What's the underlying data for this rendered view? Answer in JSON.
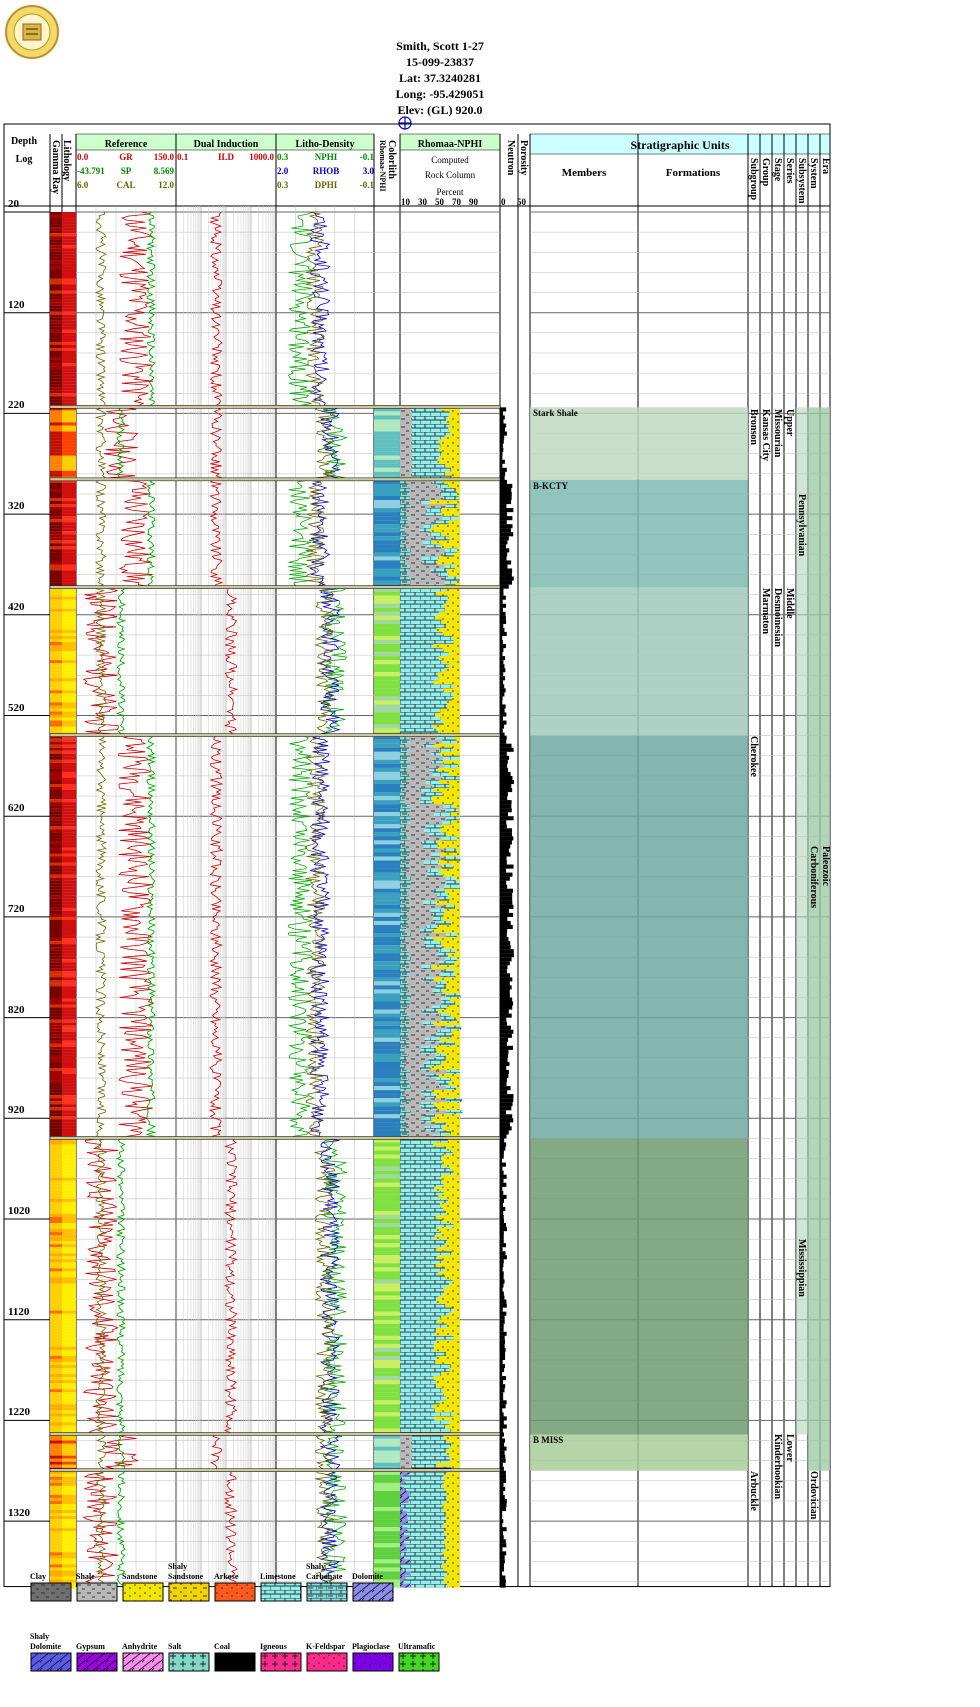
{
  "well": {
    "name": "Smith, Scott 1-27",
    "api": "15-099-23837",
    "lat": "Lat: 37.3240281",
    "long": "Long: -95.429051",
    "elev": "Elev: (GL) 920.0"
  },
  "tracks": {
    "depth_title": "Depth",
    "depth_sub": "Log",
    "lithology": "Lithology",
    "gamma": "Gamma Ray",
    "reference": {
      "title": "Reference",
      "rows": [
        {
          "min": "0.0",
          "name": "GR",
          "max": "150.0",
          "color": "#cc0000"
        },
        {
          "min": "-43.791",
          "name": "SP",
          "max": "8.569",
          "color": "#008800"
        },
        {
          "min": "6.0",
          "name": "CAL",
          "max": "12.0",
          "color": "#666600"
        }
      ]
    },
    "induction": {
      "title": "Dual Induction",
      "rows": [
        {
          "min": "0.1",
          "name": "ILD",
          "max": "1000.0",
          "color": "#cc0000"
        }
      ]
    },
    "density": {
      "title": "Litho-Density",
      "rows": [
        {
          "min": "0.3",
          "name": "NPHI",
          "max": "-0.1",
          "color": "#008800"
        },
        {
          "min": "2.0",
          "name": "RHOB",
          "max": "3.0",
          "color": "#0000cc"
        },
        {
          "min": "0.3",
          "name": "DPHI",
          "max": "-0.1",
          "color": "#666600"
        }
      ]
    },
    "colorlith": "Colorlith",
    "colorlith_sub": "Rhomaa-NPHI",
    "rhomaa": {
      "title": "Rhomaa-NPHI",
      "l1": "Computed",
      "l2": "Rock Column",
      "l3": "Percent",
      "scale": [
        "10",
        "30",
        "50",
        "70",
        "90"
      ]
    },
    "porosity": "Porosity",
    "neutron": "Neutron",
    "neutron_scale": [
      "0",
      "50"
    ],
    "strat_title": "Stratigraphic Units",
    "members": "Members",
    "formations": "Formations",
    "strat_cols": [
      "Subgroup",
      "Group",
      "Stage",
      "Series",
      "Subsystem",
      "System",
      "Era"
    ]
  },
  "depths": [
    "20",
    "120",
    "220",
    "320",
    "420",
    "520",
    "620",
    "720",
    "820",
    "920",
    "1020",
    "1120",
    "1220",
    "1320"
  ],
  "tops": [
    {
      "name": "Stark Shale",
      "depth": 214
    },
    {
      "name": "B-KCTY",
      "depth": 286
    },
    {
      "name": "",
      "depth": 393
    },
    {
      "name": "",
      "depth": 540
    },
    {
      "name": "",
      "depth": 940
    },
    {
      "name": "B MISS",
      "depth": 1234
    },
    {
      "name": "",
      "depth": 1270
    }
  ],
  "strat_labels": {
    "subgroup": [
      {
        "text": "Bronson",
        "d": 216
      },
      {
        "text": "Cherokee",
        "d": 540
      },
      {
        "text": "Arbuckle",
        "d": 1270
      }
    ],
    "group": [
      {
        "text": "Kansas City",
        "d": 216
      },
      {
        "text": "Marmaton",
        "d": 393
      }
    ],
    "stage": [
      {
        "text": "Missourian",
        "d": 216
      },
      {
        "text": "Desmoinesian",
        "d": 393
      },
      {
        "text": "Kinderhookian",
        "d": 1234
      }
    ],
    "series": [
      {
        "text": "Upper",
        "d": 216
      },
      {
        "text": "Middle",
        "d": 393
      },
      {
        "text": "Lower",
        "d": 1234
      }
    ],
    "subsystem": [
      {
        "text": "Pennsylvanian",
        "d": 300
      },
      {
        "text": "Mississippian",
        "d": 1040
      }
    ],
    "system": [
      {
        "text": "Carboniferous",
        "d": 650
      },
      {
        "text": "Ordovician",
        "d": 1270
      }
    ],
    "era": [
      {
        "text": "Paleozoic",
        "d": 650
      }
    ]
  },
  "legend": [
    {
      "name": "Clay",
      "color": "#707070",
      "pattern": "dash"
    },
    {
      "name": "Shale",
      "color": "#b8b8b8",
      "pattern": "dash"
    },
    {
      "name": "Sandstone",
      "color": "#f2e600",
      "pattern": "dot"
    },
    {
      "name": "Shaly Sandstone",
      "color": "#f2d400",
      "pattern": "dotdash"
    },
    {
      "name": "Arkose",
      "color": "#ff5a1e",
      "pattern": "dot"
    },
    {
      "name": "Limestone",
      "color": "#8ff0f0",
      "pattern": "brick"
    },
    {
      "name": "Shaly Carbonate",
      "color": "#80e0e0",
      "pattern": "brickdash"
    },
    {
      "name": "Dolomite",
      "color": "#8c8cf0",
      "pattern": "slant"
    },
    {
      "name": "Shaly Dolomite",
      "color": "#5a5af0",
      "pattern": "slant"
    },
    {
      "name": "Gypsum",
      "color": "#9b00e6",
      "pattern": "slant"
    },
    {
      "name": "Anhydrite",
      "color": "#ff8cf0",
      "pattern": "slant"
    },
    {
      "name": "Salt",
      "color": "#80d8c8",
      "pattern": "cross"
    },
    {
      "name": "Coal",
      "color": "#000000",
      "pattern": "none"
    },
    {
      "name": "Igneous",
      "color": "#ff2a8a",
      "pattern": "cross"
    },
    {
      "name": "K-Feldspar",
      "color": "#ff2a8a",
      "pattern": "dot"
    },
    {
      "name": "Plagioclase",
      "color": "#7a00e6",
      "pattern": "dot"
    },
    {
      "name": "Ultramafic",
      "color": "#40d820",
      "pattern": "cross"
    }
  ]
}
